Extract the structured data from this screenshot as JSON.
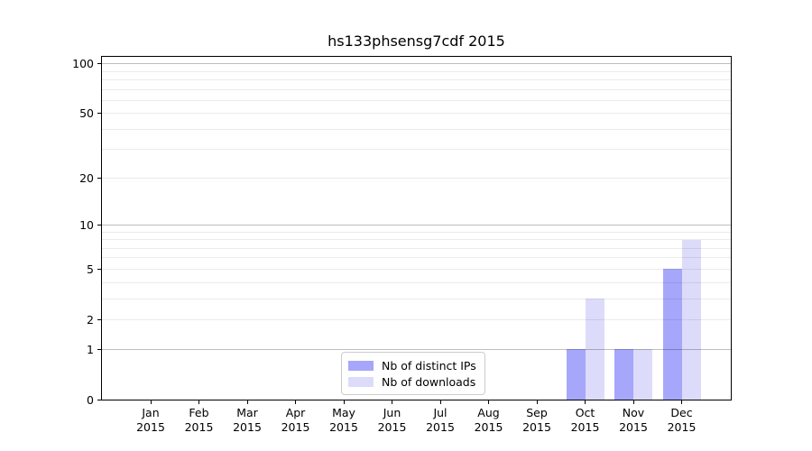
{
  "title": "hs133phsensg7cdf 2015",
  "chart_data": {
    "type": "bar",
    "title": "hs133phsensg7cdf 2015",
    "categories": [
      "Jan",
      "Feb",
      "Mar",
      "Apr",
      "May",
      "Jun",
      "Jul",
      "Aug",
      "Sep",
      "Oct",
      "Nov",
      "Dec"
    ],
    "x_year_label": "2015",
    "series": [
      {
        "name": "Nb of distinct IPs",
        "color": "#a6a6fa",
        "values": [
          0,
          0,
          0,
          0,
          0,
          0,
          0,
          0,
          0,
          1,
          1,
          5
        ]
      },
      {
        "name": "Nb of downloads",
        "color": "#dcdcfa",
        "values": [
          0,
          0,
          0,
          0,
          0,
          0,
          0,
          0,
          0,
          3,
          1,
          8
        ]
      }
    ],
    "xlabel": "",
    "ylabel": "",
    "yscale": "log1p",
    "ylim": [
      0,
      110
    ],
    "y_major_ticks": [
      0,
      1,
      2,
      5,
      10,
      20,
      50,
      100
    ],
    "y_minor_ticks": [
      3,
      4,
      6,
      7,
      8,
      9,
      30,
      40,
      60,
      70,
      80,
      90
    ],
    "grid": true,
    "grid_above_bars": true,
    "legend_position": "lower center"
  },
  "colors": {
    "background": "#ffffff",
    "spine": "#000000",
    "grid_decade": "rgba(0,0,0,0.25)",
    "grid_minor": "rgba(0,0,0,0.08)",
    "text": "#000000",
    "legend_border": "#cccccc"
  }
}
